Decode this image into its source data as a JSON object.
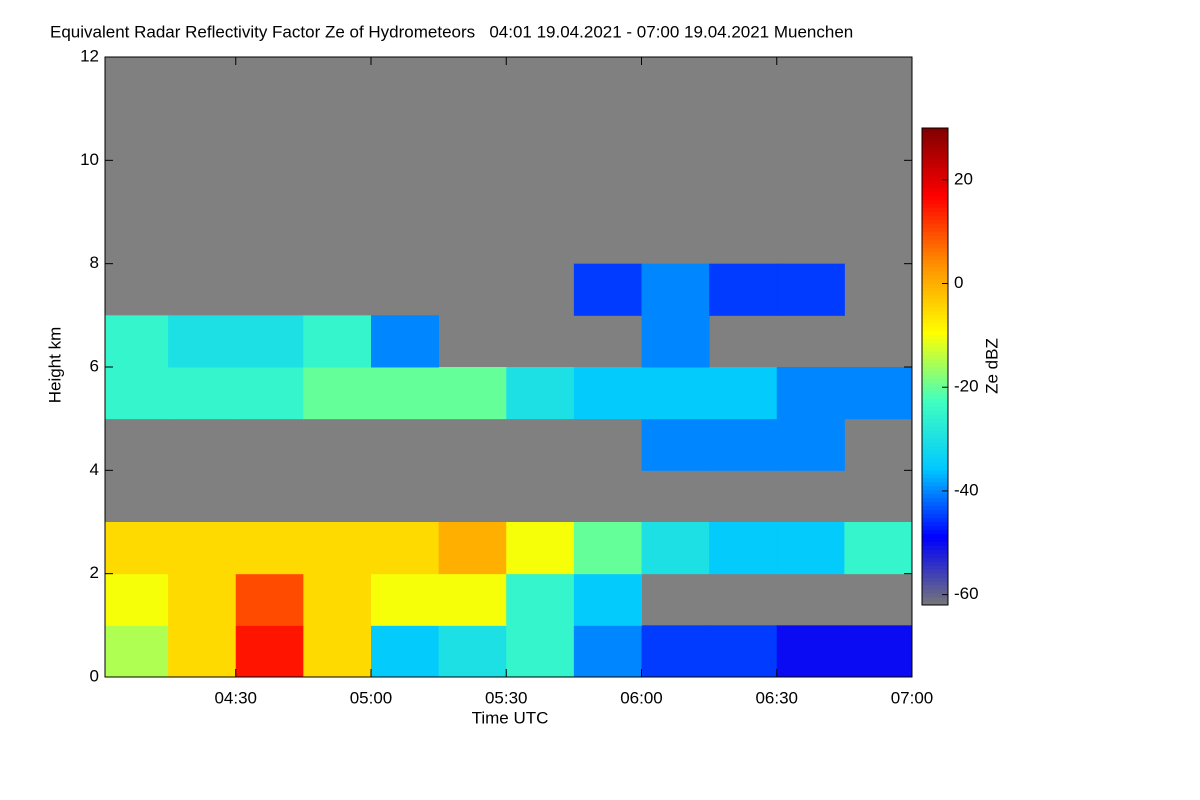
{
  "chart_data": {
    "type": "heatmap",
    "title": "Equivalent Radar Reflectivity Factor Ze of Hydrometeors   04:01 19.04.2021 - 07:00 19.04.2021 Muenchen",
    "x_label": "Time UTC",
    "y_label": "Height km",
    "colorbar_label": "Ze dBZ",
    "xlim": [
      1,
      180
    ],
    "xticks": [
      {
        "value": 30,
        "label": "04:30"
      },
      {
        "value": 60,
        "label": "05:00"
      },
      {
        "value": 90,
        "label": "05:30"
      },
      {
        "value": 120,
        "label": "06:00"
      },
      {
        "value": 150,
        "label": "06:30"
      },
      {
        "value": 180,
        "label": "07:00"
      }
    ],
    "ylim": [
      0,
      12
    ],
    "yticks": [
      0,
      2,
      4,
      6,
      8,
      10,
      12
    ],
    "x_edges": [
      1,
      15,
      30,
      45,
      60,
      75,
      90,
      105,
      120,
      135,
      150,
      165,
      180
    ],
    "y_edges": [
      0,
      1,
      2,
      3,
      4,
      5,
      6,
      7,
      8,
      9,
      10,
      11,
      12
    ],
    "z": [
      [
        -15,
        -5,
        15,
        -5,
        -35,
        -30,
        -25,
        -40,
        -45,
        -45,
        -50,
        -50
      ],
      [
        -10,
        -5,
        10,
        -5,
        -10,
        -10,
        -25,
        -35,
        null,
        null,
        null,
        null
      ],
      [
        -5,
        -5,
        -5,
        -5,
        -5,
        0,
        -10,
        -20,
        -30,
        -35,
        -35,
        -25
      ],
      [
        null,
        null,
        null,
        null,
        null,
        null,
        null,
        null,
        null,
        null,
        null,
        null
      ],
      [
        null,
        null,
        null,
        null,
        null,
        null,
        null,
        null,
        -40,
        -40,
        -40,
        null
      ],
      [
        -25,
        -25,
        -25,
        -20,
        -20,
        -20,
        -30,
        -35,
        -35,
        -35,
        -40,
        -40
      ],
      [
        -25,
        -30,
        -30,
        -25,
        -40,
        null,
        null,
        null,
        -40,
        null,
        null,
        null
      ],
      [
        null,
        null,
        null,
        null,
        null,
        null,
        null,
        -45,
        -40,
        -45,
        -45,
        null
      ],
      [
        null,
        null,
        null,
        null,
        null,
        null,
        null,
        null,
        null,
        null,
        null,
        null
      ],
      [
        null,
        null,
        null,
        null,
        null,
        null,
        null,
        null,
        null,
        null,
        null,
        null
      ],
      [
        null,
        null,
        null,
        null,
        null,
        null,
        null,
        null,
        null,
        null,
        null,
        null
      ],
      [
        null,
        null,
        null,
        null,
        null,
        null,
        null,
        null,
        null,
        null,
        null,
        null
      ]
    ],
    "zlim": [
      -62,
      30
    ],
    "zticks": [
      -60,
      -40,
      -20,
      0,
      20
    ],
    "colormap": [
      "#777777",
      "#0000ff",
      "#00c8ff",
      "#40ffc0",
      "#ffff00",
      "#ff9000",
      "#ff0000",
      "#800000"
    ],
    "background": "#808080"
  }
}
